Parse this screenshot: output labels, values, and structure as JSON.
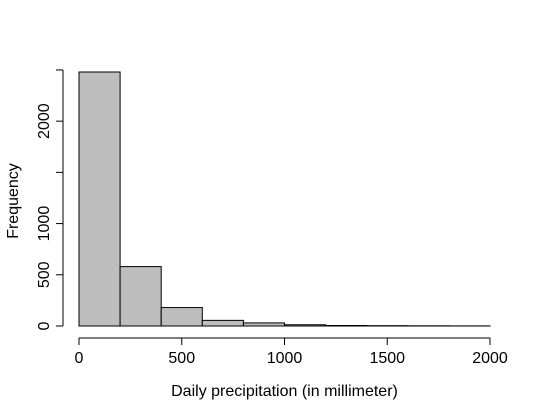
{
  "chart_data": {
    "type": "bar",
    "subtype": "histogram",
    "title": "",
    "xlabel": "Daily precipitation (in millimeter)",
    "ylabel": "Frequency",
    "xlim": [
      0,
      2000
    ],
    "ylim": [
      0,
      2480
    ],
    "bins": [
      {
        "from": 0,
        "to": 200,
        "value": 2480
      },
      {
        "from": 200,
        "to": 400,
        "value": 580
      },
      {
        "from": 400,
        "to": 600,
        "value": 180
      },
      {
        "from": 600,
        "to": 800,
        "value": 55
      },
      {
        "from": 800,
        "to": 1000,
        "value": 30
      },
      {
        "from": 1000,
        "to": 1200,
        "value": 12
      },
      {
        "from": 1200,
        "to": 1400,
        "value": 5
      },
      {
        "from": 1400,
        "to": 1600,
        "value": 3
      },
      {
        "from": 1600,
        "to": 1800,
        "value": 2
      },
      {
        "from": 1800,
        "to": 2000,
        "value": 1
      }
    ],
    "x_ticks": [
      {
        "value": 0,
        "label": "0"
      },
      {
        "value": 500,
        "label": "500"
      },
      {
        "value": 1000,
        "label": "1000"
      },
      {
        "value": 1500,
        "label": "1500"
      },
      {
        "value": 2000,
        "label": "2000"
      }
    ],
    "y_ticks": [
      {
        "value": 0,
        "label": "0"
      },
      {
        "value": 500,
        "label": "500"
      },
      {
        "value": 1000,
        "label": "1000"
      },
      {
        "value": 1500,
        "label": ""
      },
      {
        "value": 2000,
        "label": "2000"
      },
      {
        "value": 2500,
        "label": ""
      }
    ],
    "grid": false,
    "legend": "none",
    "colors": {
      "bar_fill": "#bebebe",
      "bar_stroke": "#000000",
      "axis": "#000000"
    }
  }
}
